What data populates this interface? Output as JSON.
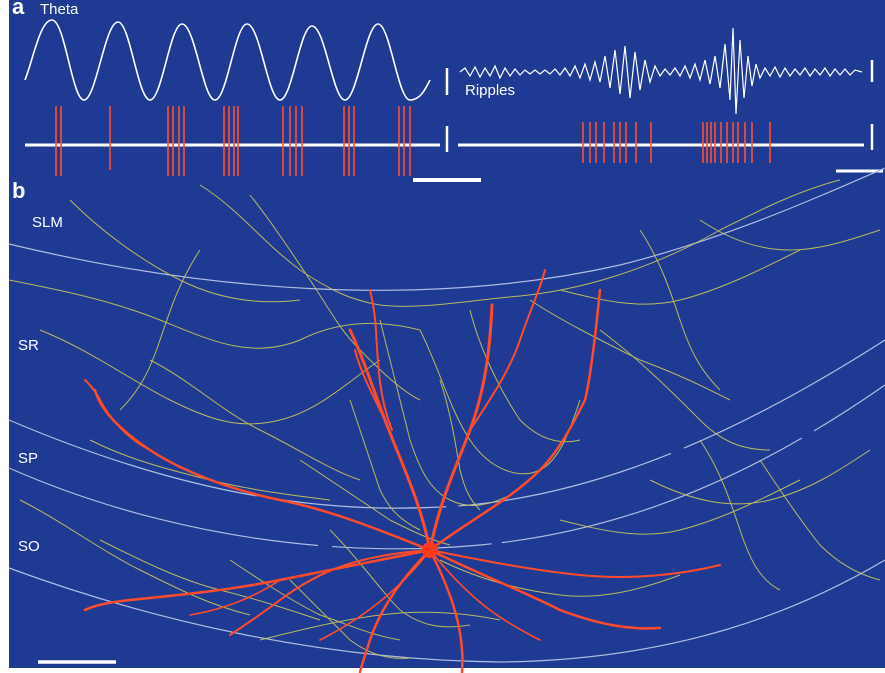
{
  "panel_a": {
    "letter": "a",
    "theta_label": "Theta",
    "ripples_label": "Ripples"
  },
  "panel_b": {
    "letter": "b",
    "layers": [
      "SLM",
      "SR",
      "SP",
      "SO"
    ]
  },
  "colors": {
    "background": "#1f3a93",
    "trace": "#ffffff",
    "spike": "#ff4f2e",
    "axon": "#c9c85a",
    "dendrite": "#ff4b2b",
    "soma": "#ff3a1e"
  }
}
